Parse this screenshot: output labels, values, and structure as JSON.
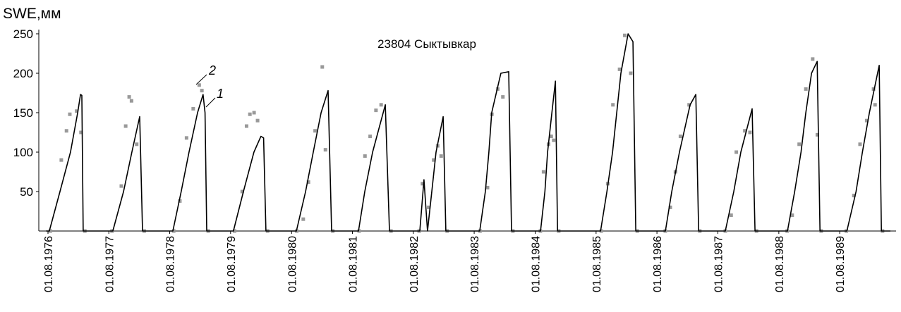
{
  "chart_data": {
    "type": "line",
    "title": "23804 Сыктывкар",
    "y_label": "SWE,мм",
    "xlim": [
      "07.06.1976",
      "05.07.1990"
    ],
    "xticks": [
      "01.08.1976",
      "01.08.1977",
      "01.08.1978",
      "01.08.1979",
      "01.08.1980",
      "01.08.1981",
      "01.08.1982",
      "01.08.1983",
      "01.08.1984",
      "01.08.1985",
      "01.08.1986",
      "01.08.1987",
      "01.08.1988",
      "01.08.1989"
    ],
    "ylim": [
      0,
      250
    ],
    "yticks": [
      50,
      100,
      150,
      200,
      250
    ],
    "series": [
      {
        "name": "1",
        "type": "line",
        "color": "#000000",
        "x": [
          "20.07.1976",
          "09.08.1976",
          "12.10.1976",
          "14.12.1976",
          "26.01.1977",
          "12.02.1977",
          "20.02.1977",
          "28.02.1977",
          "25.08.1977",
          "28.10.1977",
          "17.12.1977",
          "02.02.1978",
          "19.02.1978",
          "20.08.1978",
          "09.10.1978",
          "25.11.1978",
          "15.01.1979",
          "17.02.1979",
          "01.03.1979",
          "11.03.1979",
          "18.08.1979",
          "17.10.1979",
          "19.12.1979",
          "30.01.1980",
          "15.02.1980",
          "29.02.1980",
          "30.08.1980",
          "24.10.1980",
          "09.12.1980",
          "25.01.1981",
          "08.03.1981",
          "29.03.1981",
          "06.09.1981",
          "14.10.1981",
          "30.11.1981",
          "14.02.1982",
          "11.03.1982",
          "09.09.1982",
          "04.10.1982",
          "25.10.1982",
          "20.11.1982",
          "15.12.1982",
          "27.01.1983",
          "12.02.1983",
          "03.09.1983",
          "07.10.1983",
          "28.10.1983",
          "14.11.1983",
          "08.01.1984",
          "24.02.1984",
          "12.03.1984",
          "02.09.1984",
          "28.09.1984",
          "14.10.1984",
          "09.11.1984",
          "30.11.1984",
          "13.12.1984",
          "28.08.1985",
          "05.10.1985",
          "08.11.1985",
          "28.12.1985",
          "09.02.1986",
          "10.03.1986",
          "27.03.1986",
          "21.09.1986",
          "29.10.1986",
          "14.12.1986",
          "16.02.1987",
          "22.03.1987",
          "08.04.1987",
          "15.09.1987",
          "05.11.1987",
          "17.12.1987",
          "23.02.1988",
          "11.03.1988",
          "22.09.1988",
          "04.11.1988",
          "12.12.1988",
          "10.01.1989",
          "13.02.1989",
          "19.03.1989",
          "05.04.1989",
          "13.09.1989",
          "07.11.1989",
          "15.12.1989",
          "26.01.1990",
          "26.03.1990",
          "08.04.1990",
          "01.06.1990"
        ],
        "values": [
          0,
          0,
          50,
          100,
          150,
          173,
          172,
          0,
          0,
          50,
          100,
          145,
          0,
          0,
          50,
          100,
          150,
          173,
          150,
          0,
          0,
          50,
          100,
          120,
          118,
          0,
          0,
          50,
          100,
          150,
          178,
          0,
          0,
          50,
          100,
          160,
          0,
          0,
          65,
          0,
          50,
          100,
          145,
          0,
          0,
          50,
          100,
          150,
          200,
          202,
          0,
          0,
          50,
          100,
          150,
          190,
          0,
          0,
          50,
          100,
          200,
          250,
          240,
          0,
          0,
          50,
          100,
          160,
          173,
          0,
          0,
          50,
          100,
          155,
          0,
          0,
          50,
          100,
          150,
          200,
          215,
          0,
          0,
          50,
          100,
          150,
          210,
          0,
          0
        ]
      },
      {
        "name": "2",
        "type": "scatter",
        "color": "#999999",
        "x": [
          "15.08.1976",
          "20.10.1976",
          "20.11.1976",
          "10.12.1976",
          "20.01.1977",
          "15.02.1977",
          "10.03.1977",
          "20.08.1977",
          "15.10.1977",
          "10.11.1977",
          "01.12.1977",
          "15.12.1977",
          "15.01.1978",
          "01.03.1978",
          "25.08.1978",
          "01.10.1978",
          "10.11.1978",
          "20.12.1978",
          "25.01.1979",
          "10.02.1979",
          "20.03.1979",
          "25.08.1979",
          "10.10.1979",
          "05.11.1979",
          "25.11.1979",
          "20.12.1979",
          "10.01.1980",
          "10.03.1980",
          "01.09.1980",
          "10.10.1980",
          "10.11.1980",
          "20.12.1980",
          "01.02.1981",
          "20.02.1981",
          "05.04.1981",
          "10.09.1981",
          "15.10.1981",
          "15.11.1981",
          "20.12.1981",
          "20.01.1982",
          "20.03.1982",
          "05.09.1982",
          "25.09.1982",
          "01.11.1982",
          "01.12.1982",
          "25.12.1982",
          "15.01.1983",
          "20.02.1983",
          "05.09.1983",
          "20.10.1983",
          "15.11.1983",
          "20.12.1983",
          "20.01.1984",
          "20.03.1984",
          "01.09.1984",
          "20.09.1984",
          "20.10.1984",
          "05.11.1984",
          "20.11.1984",
          "20.12.1984",
          "01.09.1985",
          "10.10.1985",
          "10.11.1985",
          "20.12.1985",
          "20.01.1986",
          "25.02.1986",
          "05.04.1986",
          "20.09.1986",
          "20.10.1986",
          "20.11.1986",
          "20.12.1986",
          "10.02.1987",
          "15.04.1987",
          "15.09.1987",
          "20.10.1987",
          "20.11.1987",
          "10.01.1988",
          "10.02.1988",
          "20.03.1988",
          "20.09.1988",
          "20.10.1988",
          "01.12.1988",
          "10.01.1989",
          "20.02.1989",
          "20.03.1989",
          "12.04.1989",
          "10.09.1989",
          "25.10.1989",
          "01.12.1989",
          "10.01.1990",
          "20.02.1990",
          "01.03.1990",
          "15.04.1990"
        ],
        "values": [
          0,
          90,
          127,
          148,
          152,
          125,
          0,
          0,
          57,
          133,
          170,
          165,
          110,
          0,
          0,
          38,
          118,
          155,
          185,
          178,
          0,
          0,
          50,
          133,
          148,
          150,
          140,
          0,
          0,
          15,
          62,
          127,
          208,
          103,
          0,
          0,
          95,
          120,
          153,
          160,
          0,
          0,
          60,
          30,
          90,
          108,
          95,
          0,
          0,
          55,
          148,
          180,
          170,
          0,
          0,
          75,
          110,
          120,
          115,
          0,
          0,
          60,
          160,
          205,
          248,
          200,
          0,
          0,
          30,
          75,
          120,
          160,
          0,
          0,
          20,
          100,
          127,
          125,
          0,
          0,
          20,
          110,
          180,
          218,
          122,
          0,
          0,
          45,
          110,
          140,
          180,
          160,
          0
        ]
      }
    ]
  }
}
